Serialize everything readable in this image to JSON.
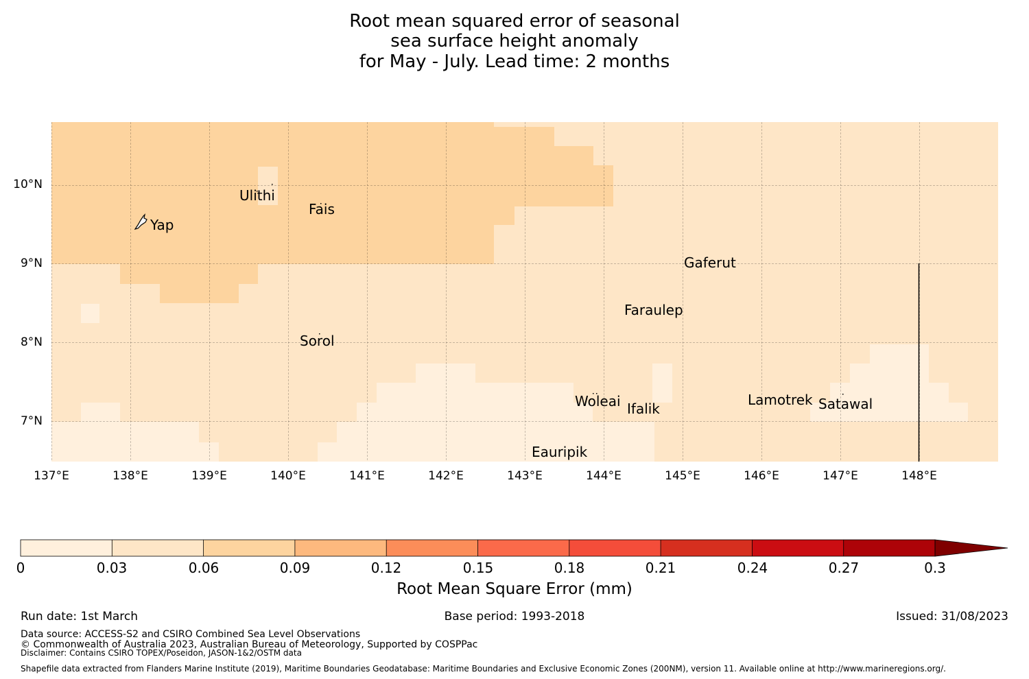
{
  "title": {
    "line1": "Root mean squared error of seasonal",
    "line2": "sea surface height anomaly",
    "line3": "for May - July. Lead time: 2 months"
  },
  "map": {
    "lat_labels": [
      "10°N",
      "9°N",
      "8°N",
      "7°N"
    ],
    "lon_labels": [
      "137°E",
      "138°E",
      "139°E",
      "140°E",
      "141°E",
      "142°E",
      "143°E",
      "144°E",
      "145°E",
      "146°E",
      "147°E",
      "148°E"
    ],
    "places": {
      "yap": "Yap",
      "ulithi": "Ulithi",
      "fais": "Fais",
      "gaferut": "Gaferut",
      "faraulep": "Faraulep",
      "sorol": "Sorol",
      "woleai": "Woleai",
      "ifalik": "Ifalik",
      "lamotrek": "Lamotrek",
      "satawal": "Satawal",
      "eauripik": "Eauripik"
    },
    "colors": {
      "class_0_003": "#fff0dd",
      "class_003_006": "#fee6c7",
      "class_006_009": "#fdd49f"
    }
  },
  "colorbar": {
    "title": "Root Mean Square Error (mm)",
    "ticks": [
      "0",
      "0.03",
      "0.06",
      "0.09",
      "0.12",
      "0.15",
      "0.18",
      "0.21",
      "0.24",
      "0.27",
      "0.3"
    ],
    "colors": [
      "#fff0dd",
      "#fee6c7",
      "#fdd49f",
      "#fdb97e",
      "#fc8d59",
      "#fb6a4a",
      "#f44d3a",
      "#d62f1f",
      "#cb0d12",
      "#ad0308",
      "#7f0000"
    ]
  },
  "footer": {
    "run_date": "Run date: 1st March",
    "base_period": "Base period: 1993-2018",
    "issued": "Issued: 31/08/2023",
    "data_source": "Data source: ACCESS-S2 and CSIRO Combined Sea Level Observations",
    "copyright": "© Commonwealth of Australia 2023, Australian Bureau of Meteorology, Supported by COSPPac",
    "disclaimer": "Disclaimer: Contains CSIRO TOPEX/Poseidon, JASON-1&2/OSTM data",
    "shapefile": "Shapefile data extracted from Flanders Marine Institute (2019), Maritime Boundaries Geodatabase: Maritime Boundaries and Exclusive Economic Zones (200NM), version 11. Available online at http://www.marineregions.org/."
  }
}
